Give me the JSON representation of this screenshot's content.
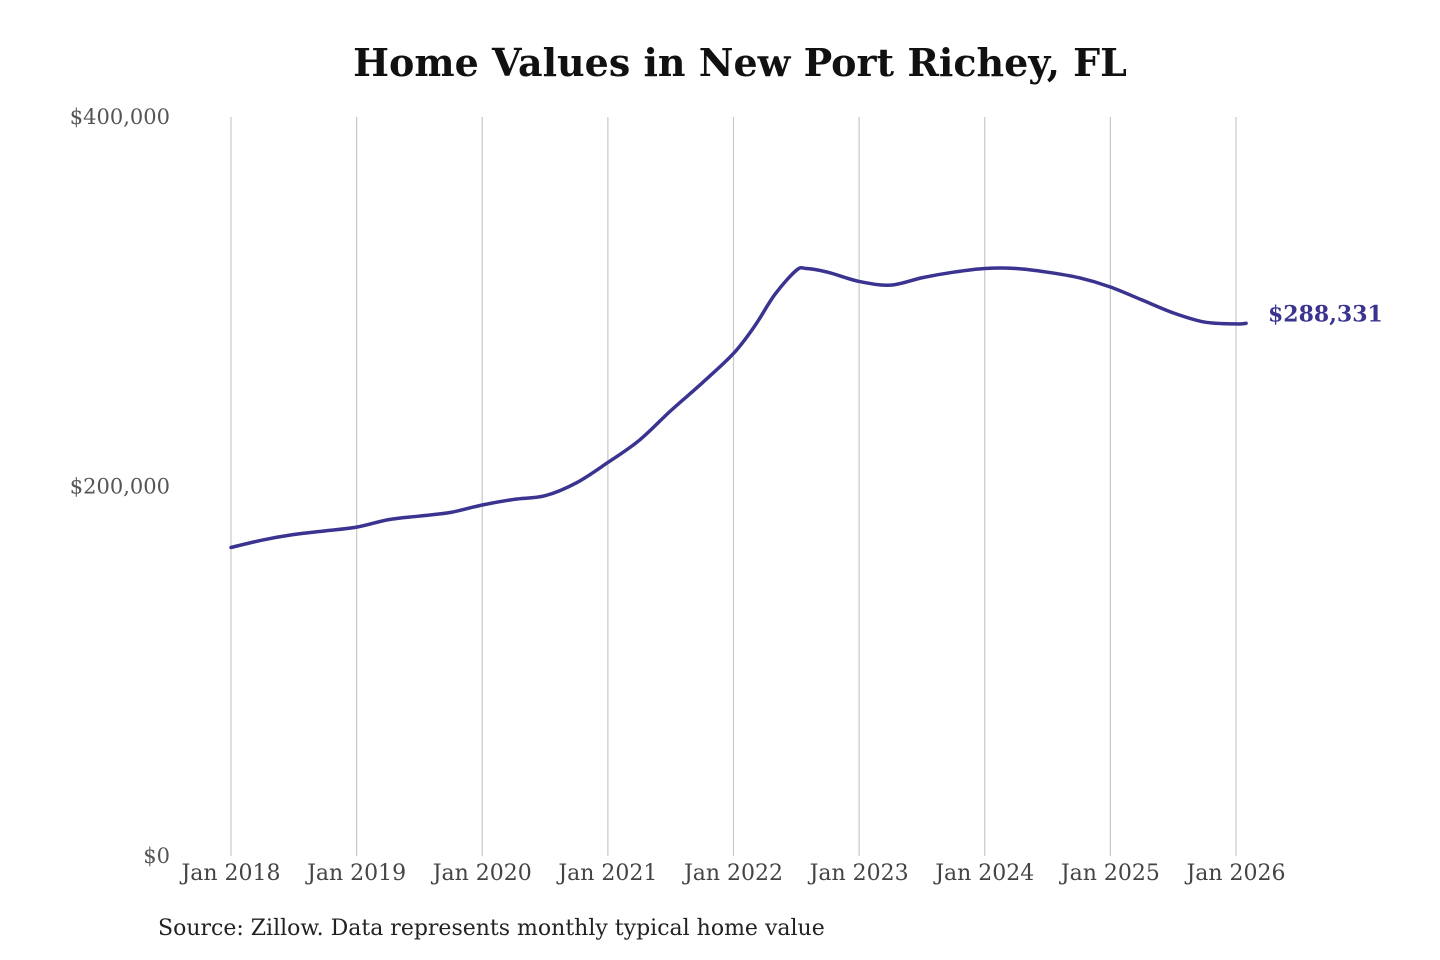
{
  "chart_data": {
    "type": "line",
    "title": "Home Values in New Port Richey, FL",
    "xlabel": "",
    "ylabel": "",
    "ylim": [
      0,
      400000
    ],
    "y_ticks": [
      {
        "value": 0,
        "label": "$0"
      },
      {
        "value": 200000,
        "label": "$200,000"
      },
      {
        "value": 400000,
        "label": "$400,000"
      }
    ],
    "x_range": [
      2018.0,
      2026.0
    ],
    "x_ticks": [
      {
        "value": 2018,
        "label": "Jan 2018"
      },
      {
        "value": 2019,
        "label": "Jan 2019"
      },
      {
        "value": 2020,
        "label": "Jan 2020"
      },
      {
        "value": 2021,
        "label": "Jan 2021"
      },
      {
        "value": 2022,
        "label": "Jan 2022"
      },
      {
        "value": 2023,
        "label": "Jan 2023"
      },
      {
        "value": 2024,
        "label": "Jan 2024"
      },
      {
        "value": 2025,
        "label": "Jan 2025"
      },
      {
        "value": 2026,
        "label": "Jan 2026"
      }
    ],
    "grid": {
      "vertical": true,
      "horizontal": false
    },
    "series": [
      {
        "color": "#3a3490",
        "x": [
          2018.0,
          2018.25,
          2018.5,
          2018.75,
          2019.0,
          2019.25,
          2019.5,
          2019.75,
          2020.0,
          2020.25,
          2020.5,
          2020.75,
          2021.0,
          2021.25,
          2021.5,
          2021.75,
          2022.0,
          2022.17,
          2022.33,
          2022.5,
          2022.58,
          2022.75,
          2023.0,
          2023.25,
          2023.5,
          2023.75,
          2024.0,
          2024.25,
          2024.5,
          2024.75,
          2025.0,
          2025.25,
          2025.5,
          2025.75,
          2026.0,
          2026.08
        ],
        "y": [
          167000,
          171000,
          174000,
          176000,
          178000,
          182000,
          184000,
          186000,
          190000,
          193000,
          195000,
          202000,
          213000,
          225000,
          241000,
          256000,
          272000,
          287000,
          304000,
          317000,
          318000,
          316000,
          311000,
          309000,
          313000,
          316000,
          318000,
          318000,
          316000,
          313000,
          308000,
          301000,
          294000,
          289000,
          288000,
          288331
        ]
      }
    ],
    "end_label": "$288,331",
    "source": "Source: Zillow. Data represents monthly typical home value"
  }
}
